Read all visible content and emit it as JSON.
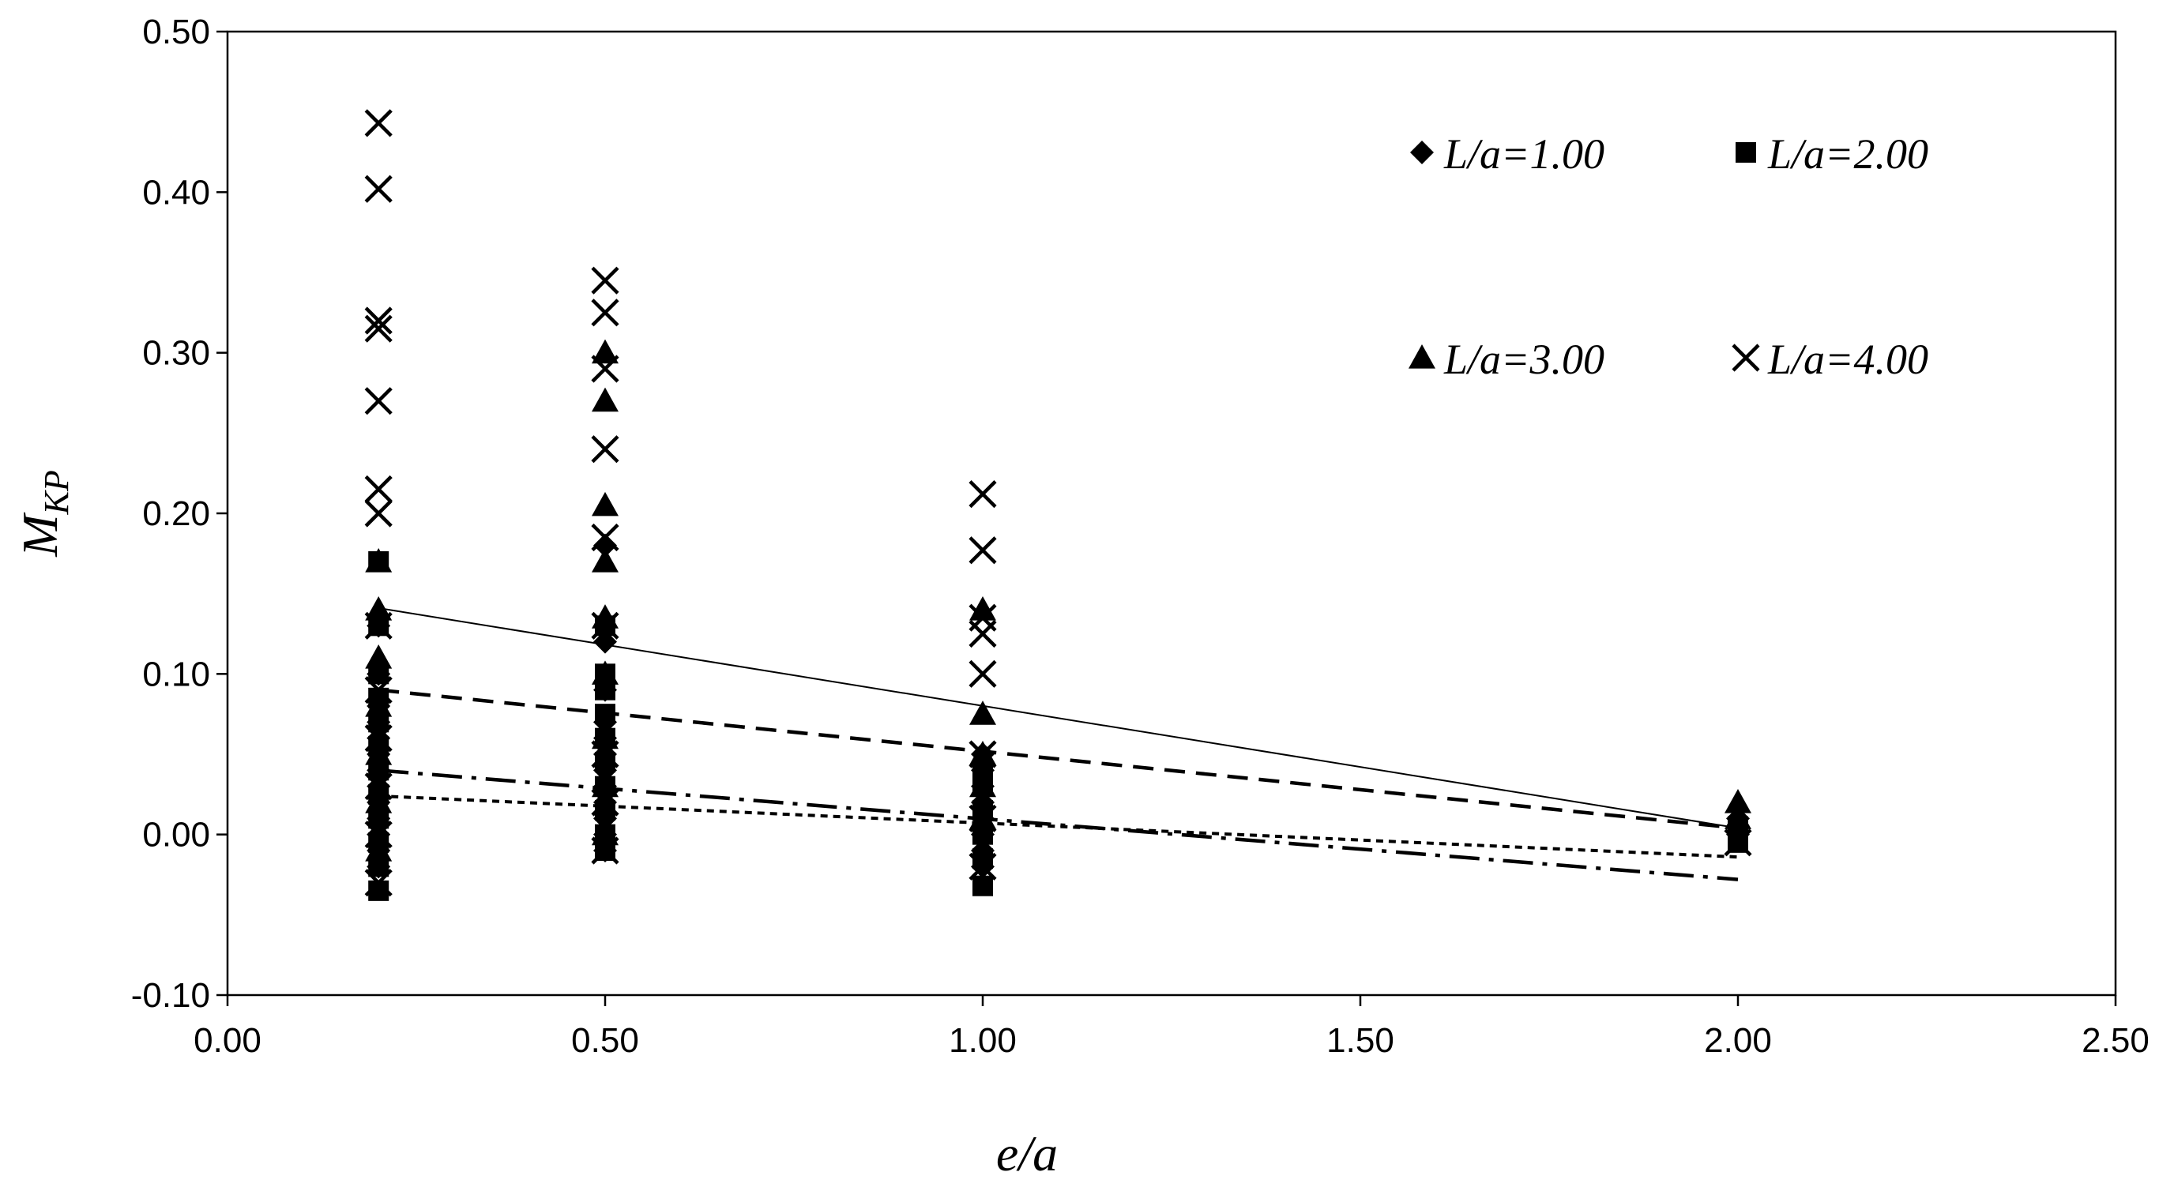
{
  "chart_data": {
    "type": "scatter",
    "xlabel": "e/a",
    "ylabel_main": "M",
    "ylabel_sub": "KP",
    "xlim": [
      0,
      2.5
    ],
    "ylim": [
      -0.1,
      0.5
    ],
    "x_ticks": [
      "0.00",
      "0.50",
      "1.00",
      "1.50",
      "2.00",
      "2.50"
    ],
    "y_ticks": [
      "-0.10",
      "0.00",
      "0.10",
      "0.20",
      "0.30",
      "0.40",
      "0.50"
    ],
    "x_tick_values": [
      0,
      0.5,
      1.0,
      1.5,
      2.0,
      2.5
    ],
    "y_tick_values": [
      -0.1,
      0,
      0.1,
      0.2,
      0.3,
      0.4,
      0.5
    ],
    "grid": false,
    "legend_placement": "top-right",
    "series": [
      {
        "name": "L/a=1.00",
        "marker": "diamond",
        "points": [
          [
            0.2,
            -0.02
          ],
          [
            0.2,
            -0.01
          ],
          [
            0.2,
            0.0
          ],
          [
            0.2,
            0.01
          ],
          [
            0.2,
            0.02
          ],
          [
            0.2,
            0.03
          ],
          [
            0.2,
            0.04
          ],
          [
            0.2,
            0.05
          ],
          [
            0.2,
            0.06
          ],
          [
            0.2,
            0.07
          ],
          [
            0.2,
            0.08
          ],
          [
            0.2,
            0.1
          ],
          [
            0.2,
            0.13
          ],
          [
            0.5,
            -0.01
          ],
          [
            0.5,
            0.0
          ],
          [
            0.5,
            0.01
          ],
          [
            0.5,
            0.02
          ],
          [
            0.5,
            0.03
          ],
          [
            0.5,
            0.04
          ],
          [
            0.5,
            0.05
          ],
          [
            0.5,
            0.06
          ],
          [
            0.5,
            0.07
          ],
          [
            0.5,
            0.09
          ],
          [
            0.5,
            0.12
          ],
          [
            0.5,
            0.18
          ],
          [
            1.0,
            -0.02
          ],
          [
            1.0,
            -0.01
          ],
          [
            1.0,
            0.0
          ],
          [
            1.0,
            0.01
          ],
          [
            1.0,
            0.02
          ],
          [
            1.0,
            0.03
          ],
          [
            1.0,
            0.04
          ],
          [
            1.0,
            0.05
          ],
          [
            2.0,
            0.0
          ],
          [
            2.0,
            0.01
          ]
        ]
      },
      {
        "name": "L/a=2.00",
        "marker": "square",
        "points": [
          [
            0.2,
            -0.035
          ],
          [
            0.2,
            -0.02
          ],
          [
            0.2,
            -0.005
          ],
          [
            0.2,
            0.01
          ],
          [
            0.2,
            0.025
          ],
          [
            0.2,
            0.04
          ],
          [
            0.2,
            0.055
          ],
          [
            0.2,
            0.07
          ],
          [
            0.2,
            0.085
          ],
          [
            0.2,
            0.1
          ],
          [
            0.2,
            0.13
          ],
          [
            0.2,
            0.17
          ],
          [
            0.5,
            -0.01
          ],
          [
            0.5,
            0.0
          ],
          [
            0.5,
            0.015
          ],
          [
            0.5,
            0.03
          ],
          [
            0.5,
            0.045
          ],
          [
            0.5,
            0.06
          ],
          [
            0.5,
            0.075
          ],
          [
            0.5,
            0.09
          ],
          [
            0.5,
            0.1
          ],
          [
            0.5,
            0.13
          ],
          [
            1.0,
            -0.032
          ],
          [
            1.0,
            -0.015
          ],
          [
            1.0,
            0.0
          ],
          [
            1.0,
            0.015
          ],
          [
            1.0,
            0.03
          ],
          [
            1.0,
            0.04
          ],
          [
            2.0,
            -0.005
          ],
          [
            2.0,
            0.005
          ]
        ]
      },
      {
        "name": "L/a=3.00",
        "marker": "triangle",
        "points": [
          [
            0.2,
            -0.01
          ],
          [
            0.2,
            0.02
          ],
          [
            0.2,
            0.05
          ],
          [
            0.2,
            0.08
          ],
          [
            0.2,
            0.11
          ],
          [
            0.2,
            0.14
          ],
          [
            0.2,
            0.17
          ],
          [
            0.5,
            0.0
          ],
          [
            0.5,
            0.03
          ],
          [
            0.5,
            0.06
          ],
          [
            0.5,
            0.1
          ],
          [
            0.5,
            0.135
          ],
          [
            0.5,
            0.17
          ],
          [
            0.5,
            0.205
          ],
          [
            0.5,
            0.27
          ],
          [
            0.5,
            0.3
          ],
          [
            1.0,
            0.01
          ],
          [
            1.0,
            0.03
          ],
          [
            1.0,
            0.05
          ],
          [
            1.0,
            0.075
          ],
          [
            1.0,
            0.14
          ],
          [
            2.0,
            0.01
          ],
          [
            2.0,
            0.02
          ]
        ]
      },
      {
        "name": "L/a=4.00",
        "marker": "x",
        "points": [
          [
            0.2,
            -0.03
          ],
          [
            0.2,
            0.0
          ],
          [
            0.2,
            0.03
          ],
          [
            0.2,
            0.06
          ],
          [
            0.2,
            0.09
          ],
          [
            0.2,
            0.13
          ],
          [
            0.2,
            0.2
          ],
          [
            0.2,
            0.215
          ],
          [
            0.2,
            0.27
          ],
          [
            0.2,
            0.315
          ],
          [
            0.2,
            0.32
          ],
          [
            0.2,
            0.402
          ],
          [
            0.2,
            0.443
          ],
          [
            0.5,
            -0.01
          ],
          [
            0.5,
            0.02
          ],
          [
            0.5,
            0.05
          ],
          [
            0.5,
            0.13
          ],
          [
            0.5,
            0.185
          ],
          [
            0.5,
            0.24
          ],
          [
            0.5,
            0.29
          ],
          [
            0.5,
            0.325
          ],
          [
            0.5,
            0.345
          ],
          [
            1.0,
            -0.02
          ],
          [
            1.0,
            0.01
          ],
          [
            1.0,
            0.05
          ],
          [
            1.0,
            0.1
          ],
          [
            1.0,
            0.125
          ],
          [
            1.0,
            0.135
          ],
          [
            1.0,
            0.177
          ],
          [
            1.0,
            0.212
          ],
          [
            2.0,
            -0.005
          ]
        ]
      }
    ],
    "trendlines": [
      {
        "series": "L/a=1.00",
        "style": "solid",
        "x": [
          0.2,
          2.0
        ],
        "y": [
          0.141,
          0.004
        ]
      },
      {
        "series": "L/a=2.00",
        "style": "dashed",
        "x": [
          0.2,
          2.0
        ],
        "y": [
          0.09,
          0.004
        ]
      },
      {
        "series": "L/a=3.00",
        "style": "dash-dot",
        "x": [
          0.2,
          2.0
        ],
        "y": [
          0.04,
          -0.028
        ]
      },
      {
        "series": "L/a=4.00",
        "style": "dotted",
        "x": [
          0.2,
          2.0
        ],
        "y": [
          0.024,
          -0.014
        ]
      }
    ]
  }
}
